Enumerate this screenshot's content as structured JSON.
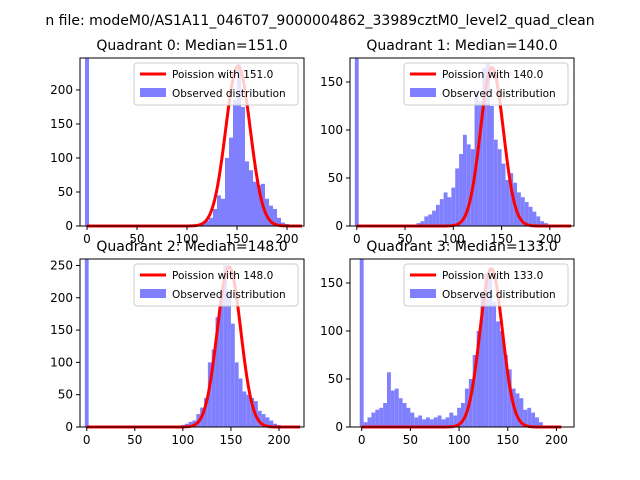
{
  "figure_title": "n file: modeM0/AS1A11_046T07_9000004862_33989cztM0_level2_quad_clean",
  "colors": {
    "bar": "#8080ff",
    "bar_edge": "#8080ff",
    "line": "#ff0000",
    "axis": "#000000"
  },
  "chart_data": [
    {
      "type": "bar",
      "title": "Quadrant 0: Median=151.0",
      "median": 151.0,
      "xlim": [
        -7,
        217
      ],
      "ylim": [
        0,
        247
      ],
      "xticks": [
        0,
        50,
        100,
        150,
        200
      ],
      "yticks": [
        0,
        50,
        100,
        150,
        200
      ],
      "legend": {
        "position": "top-right",
        "line_label": "Poission with 151.0",
        "bar_label": "Observed distribution"
      },
      "bin_width": 4,
      "bars": [
        {
          "x": 0,
          "y": 247
        },
        {
          "x": 112,
          "y": 3
        },
        {
          "x": 116,
          "y": 5
        },
        {
          "x": 120,
          "y": 8
        },
        {
          "x": 124,
          "y": 12
        },
        {
          "x": 128,
          "y": 25
        },
        {
          "x": 132,
          "y": 45
        },
        {
          "x": 136,
          "y": 40
        },
        {
          "x": 140,
          "y": 100
        },
        {
          "x": 144,
          "y": 130
        },
        {
          "x": 148,
          "y": 185
        },
        {
          "x": 152,
          "y": 238
        },
        {
          "x": 156,
          "y": 175
        },
        {
          "x": 160,
          "y": 95
        },
        {
          "x": 164,
          "y": 82
        },
        {
          "x": 168,
          "y": 65
        },
        {
          "x": 172,
          "y": 60
        },
        {
          "x": 176,
          "y": 62
        },
        {
          "x": 180,
          "y": 40
        },
        {
          "x": 184,
          "y": 30
        },
        {
          "x": 188,
          "y": 25
        },
        {
          "x": 192,
          "y": 12
        },
        {
          "x": 196,
          "y": 5
        },
        {
          "x": 200,
          "y": 3
        },
        {
          "x": 204,
          "y": 2
        }
      ],
      "curve": {
        "mean": 151.0,
        "peak": 235,
        "x_range": [
          0,
          215
        ]
      }
    },
    {
      "type": "bar",
      "title": "Quadrant 1: Median=140.0",
      "median": 140.0,
      "xlim": [
        -7,
        225
      ],
      "ylim": [
        0,
        175
      ],
      "xticks": [
        0,
        50,
        100,
        150,
        200
      ],
      "yticks": [
        0,
        50,
        100,
        150
      ],
      "legend": {
        "position": "top-right",
        "line_label": "Poission with 140.0",
        "bar_label": "Observed distribution"
      },
      "bin_width": 4,
      "bars": [
        {
          "x": 0,
          "y": 175
        },
        {
          "x": 64,
          "y": 3
        },
        {
          "x": 68,
          "y": 5
        },
        {
          "x": 72,
          "y": 10
        },
        {
          "x": 76,
          "y": 12
        },
        {
          "x": 80,
          "y": 16
        },
        {
          "x": 84,
          "y": 22
        },
        {
          "x": 88,
          "y": 28
        },
        {
          "x": 92,
          "y": 35
        },
        {
          "x": 96,
          "y": 30
        },
        {
          "x": 100,
          "y": 40
        },
        {
          "x": 104,
          "y": 60
        },
        {
          "x": 108,
          "y": 75
        },
        {
          "x": 112,
          "y": 95
        },
        {
          "x": 116,
          "y": 85
        },
        {
          "x": 120,
          "y": 80
        },
        {
          "x": 124,
          "y": 140
        },
        {
          "x": 128,
          "y": 130
        },
        {
          "x": 132,
          "y": 165
        },
        {
          "x": 136,
          "y": 170
        },
        {
          "x": 140,
          "y": 125
        },
        {
          "x": 144,
          "y": 90
        },
        {
          "x": 148,
          "y": 80
        },
        {
          "x": 152,
          "y": 65
        },
        {
          "x": 156,
          "y": 48
        },
        {
          "x": 160,
          "y": 55
        },
        {
          "x": 164,
          "y": 45
        },
        {
          "x": 168,
          "y": 35
        },
        {
          "x": 172,
          "y": 30
        },
        {
          "x": 176,
          "y": 25
        },
        {
          "x": 180,
          "y": 20
        },
        {
          "x": 184,
          "y": 15
        },
        {
          "x": 188,
          "y": 10
        },
        {
          "x": 192,
          "y": 5
        },
        {
          "x": 196,
          "y": 3
        }
      ],
      "curve": {
        "mean": 140.0,
        "peak": 165,
        "x_range": [
          0,
          222
        ]
      }
    },
    {
      "type": "bar",
      "title": "Quadrant 2: Median=148.0",
      "median": 148.0,
      "xlim": [
        -7,
        226
      ],
      "ylim": [
        0,
        260
      ],
      "xticks": [
        0,
        50,
        100,
        150,
        200
      ],
      "yticks": [
        0,
        50,
        100,
        150,
        200,
        250
      ],
      "legend": {
        "position": "top-right",
        "line_label": "Poission with 148.0",
        "bar_label": "Observed distribution"
      },
      "bin_width": 4,
      "bars": [
        {
          "x": 0,
          "y": 260
        },
        {
          "x": 96,
          "y": 2
        },
        {
          "x": 100,
          "y": 3
        },
        {
          "x": 104,
          "y": 5
        },
        {
          "x": 108,
          "y": 8
        },
        {
          "x": 112,
          "y": 10
        },
        {
          "x": 116,
          "y": 20
        },
        {
          "x": 120,
          "y": 30
        },
        {
          "x": 124,
          "y": 45
        },
        {
          "x": 128,
          "y": 100
        },
        {
          "x": 132,
          "y": 120
        },
        {
          "x": 136,
          "y": 170
        },
        {
          "x": 140,
          "y": 210
        },
        {
          "x": 144,
          "y": 250
        },
        {
          "x": 148,
          "y": 210
        },
        {
          "x": 152,
          "y": 160
        },
        {
          "x": 156,
          "y": 100
        },
        {
          "x": 160,
          "y": 75
        },
        {
          "x": 164,
          "y": 55
        },
        {
          "x": 168,
          "y": 50
        },
        {
          "x": 172,
          "y": 45
        },
        {
          "x": 176,
          "y": 40
        },
        {
          "x": 180,
          "y": 25
        },
        {
          "x": 184,
          "y": 20
        },
        {
          "x": 188,
          "y": 15
        },
        {
          "x": 192,
          "y": 10
        },
        {
          "x": 196,
          "y": 5
        },
        {
          "x": 200,
          "y": 3
        },
        {
          "x": 204,
          "y": 2
        }
      ],
      "curve": {
        "mean": 148.0,
        "peak": 248,
        "x_range": [
          0,
          222
        ]
      }
    },
    {
      "type": "bar",
      "title": "Quadrant 3: Median=133.0",
      "median": 133.0,
      "xlim": [
        -12,
        218
      ],
      "ylim": [
        0,
        175
      ],
      "xticks": [
        0,
        50,
        100,
        150,
        200
      ],
      "yticks": [
        0,
        50,
        100,
        150
      ],
      "legend": {
        "position": "top-right",
        "line_label": "Poission with 133.0",
        "bar_label": "Observed distribution"
      },
      "bin_width": 4,
      "bars": [
        {
          "x": 0,
          "y": 175
        },
        {
          "x": 4,
          "y": 5
        },
        {
          "x": 8,
          "y": 10
        },
        {
          "x": 12,
          "y": 15
        },
        {
          "x": 16,
          "y": 18
        },
        {
          "x": 20,
          "y": 20
        },
        {
          "x": 24,
          "y": 25
        },
        {
          "x": 28,
          "y": 57
        },
        {
          "x": 32,
          "y": 38
        },
        {
          "x": 36,
          "y": 40
        },
        {
          "x": 40,
          "y": 30
        },
        {
          "x": 44,
          "y": 25
        },
        {
          "x": 48,
          "y": 20
        },
        {
          "x": 52,
          "y": 15
        },
        {
          "x": 56,
          "y": 10
        },
        {
          "x": 60,
          "y": 12
        },
        {
          "x": 64,
          "y": 8
        },
        {
          "x": 68,
          "y": 10
        },
        {
          "x": 72,
          "y": 8
        },
        {
          "x": 76,
          "y": 10
        },
        {
          "x": 80,
          "y": 12
        },
        {
          "x": 84,
          "y": 8
        },
        {
          "x": 88,
          "y": 10
        },
        {
          "x": 92,
          "y": 15
        },
        {
          "x": 96,
          "y": 12
        },
        {
          "x": 100,
          "y": 20
        },
        {
          "x": 104,
          "y": 25
        },
        {
          "x": 108,
          "y": 40
        },
        {
          "x": 112,
          "y": 50
        },
        {
          "x": 116,
          "y": 75
        },
        {
          "x": 120,
          "y": 100
        },
        {
          "x": 124,
          "y": 140
        },
        {
          "x": 128,
          "y": 160
        },
        {
          "x": 132,
          "y": 155
        },
        {
          "x": 136,
          "y": 130
        },
        {
          "x": 140,
          "y": 110
        },
        {
          "x": 144,
          "y": 100
        },
        {
          "x": 148,
          "y": 75
        },
        {
          "x": 152,
          "y": 60
        },
        {
          "x": 156,
          "y": 40
        },
        {
          "x": 160,
          "y": 35
        },
        {
          "x": 164,
          "y": 30
        },
        {
          "x": 168,
          "y": 18
        },
        {
          "x": 172,
          "y": 20
        },
        {
          "x": 176,
          "y": 15
        },
        {
          "x": 180,
          "y": 10
        },
        {
          "x": 184,
          "y": 5
        }
      ],
      "curve": {
        "mean": 133.0,
        "peak": 165,
        "x_range": [
          0,
          205
        ]
      }
    }
  ]
}
